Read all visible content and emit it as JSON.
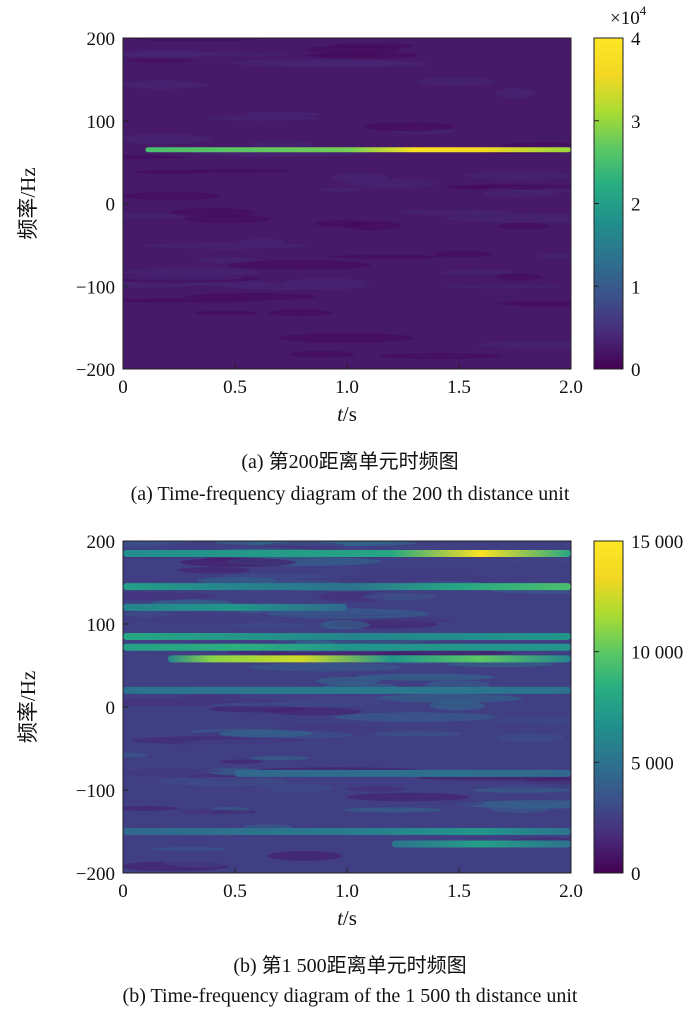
{
  "colors": {
    "viridis": [
      "#440154",
      "#472c7a",
      "#3b528b",
      "#2c728e",
      "#21908d",
      "#27ad81",
      "#5cc863",
      "#aadc32",
      "#f3d722",
      "#fde725"
    ],
    "background": "#2f3a85"
  },
  "captions": {
    "a_cn": "(a) 第200距离单元时频图",
    "a_en": "(a) Time-frequency diagram of the 200 th distance unit",
    "b_cn": "(b) 第1 500距离单元时频图",
    "b_en": "(b) Time-frequency diagram of the 1 500 th distance unit"
  },
  "chart_data": [
    {
      "type": "heatmap",
      "xlabel_var": "t",
      "xlabel_unit": "/s",
      "ylabel": "频率/Hz",
      "xlim": [
        0,
        2.0
      ],
      "ylim": [
        -200,
        200
      ],
      "x_ticks": [
        "0",
        "0.5",
        "1.0",
        "1.5",
        "2.0"
      ],
      "y_ticks": [
        "200",
        "100",
        "0",
        "−100",
        "−200"
      ],
      "colorbar": {
        "min": 0,
        "max": 4,
        "ticks": [
          "4",
          "3",
          "2",
          "1",
          "0"
        ],
        "multiplier": "×10",
        "exponent": "4"
      },
      "background_level": 2500,
      "components": [
        {
          "t_start": 0.1,
          "t_end": 2.0,
          "frequency": 65,
          "intensity": [
            [
              0.1,
              25000
            ],
            [
              1.0,
              28000
            ],
            [
              1.3,
              38000
            ],
            [
              1.6,
              36000
            ],
            [
              2.0,
              30000
            ]
          ]
        }
      ]
    },
    {
      "type": "heatmap",
      "xlabel_var": "t",
      "xlabel_unit": "/s",
      "ylabel": "频率/Hz",
      "xlim": [
        0,
        2.0
      ],
      "ylim": [
        -200,
        200
      ],
      "x_ticks": [
        "0",
        "0.5",
        "1.0",
        "1.5",
        "2.0"
      ],
      "y_ticks": [
        "200",
        "100",
        "0",
        "−100",
        "−200"
      ],
      "colorbar": {
        "min": 0,
        "max": 15000,
        "ticks": [
          "15 000",
          "10 000",
          "5 000",
          "0"
        ],
        "multiplier": "",
        "exponent": ""
      },
      "background_level": 2500,
      "components": [
        {
          "t_start": 0.0,
          "t_end": 2.0,
          "frequency": 185,
          "intensity": [
            [
              0.0,
              6500
            ],
            [
              1.2,
              8000
            ],
            [
              1.6,
              14500
            ],
            [
              2.0,
              8000
            ]
          ]
        },
        {
          "t_start": 0.0,
          "t_end": 2.0,
          "frequency": 145,
          "intensity": [
            [
              0.0,
              7500
            ],
            [
              0.5,
              6000
            ],
            [
              1.0,
              5000
            ],
            [
              1.5,
              8000
            ],
            [
              2.0,
              9500
            ]
          ]
        },
        {
          "t_start": 0.0,
          "t_end": 1.0,
          "frequency": 120,
          "intensity": [
            [
              0.0,
              6000
            ],
            [
              0.5,
              7000
            ],
            [
              1.0,
              4500
            ]
          ]
        },
        {
          "t_start": 0.0,
          "t_end": 2.0,
          "frequency": 85,
          "intensity": [
            [
              0.0,
              8000
            ],
            [
              1.0,
              6000
            ],
            [
              2.0,
              7000
            ]
          ]
        },
        {
          "t_start": 0.0,
          "t_end": 2.0,
          "frequency": 72,
          "intensity": [
            [
              0.0,
              7500
            ],
            [
              0.5,
              8500
            ],
            [
              1.0,
              7000
            ],
            [
              2.0,
              7000
            ]
          ]
        },
        {
          "t_start": 0.2,
          "t_end": 2.0,
          "frequency": 58,
          "intensity": [
            [
              0.2,
              6000
            ],
            [
              0.4,
              11000
            ],
            [
              0.8,
              12500
            ],
            [
              1.2,
              7000
            ],
            [
              1.6,
              10000
            ],
            [
              2.0,
              6000
            ]
          ]
        },
        {
          "t_start": 0.0,
          "t_end": 2.0,
          "frequency": 20,
          "intensity": [
            [
              0.0,
              5000
            ],
            [
              1.0,
              5500
            ],
            [
              2.0,
              5000
            ]
          ]
        },
        {
          "t_start": 0.5,
          "t_end": 2.0,
          "frequency": -80,
          "intensity": [
            [
              0.5,
              4500
            ],
            [
              1.5,
              5000
            ],
            [
              2.0,
              4500
            ]
          ]
        },
        {
          "t_start": 0.0,
          "t_end": 2.0,
          "frequency": -150,
          "intensity": [
            [
              0.0,
              4500
            ],
            [
              1.0,
              5500
            ],
            [
              1.6,
              7000
            ],
            [
              2.0,
              5000
            ]
          ]
        },
        {
          "t_start": 1.2,
          "t_end": 2.0,
          "frequency": -165,
          "intensity": [
            [
              1.2,
              5000
            ],
            [
              1.6,
              7500
            ],
            [
              2.0,
              5000
            ]
          ]
        }
      ]
    }
  ]
}
